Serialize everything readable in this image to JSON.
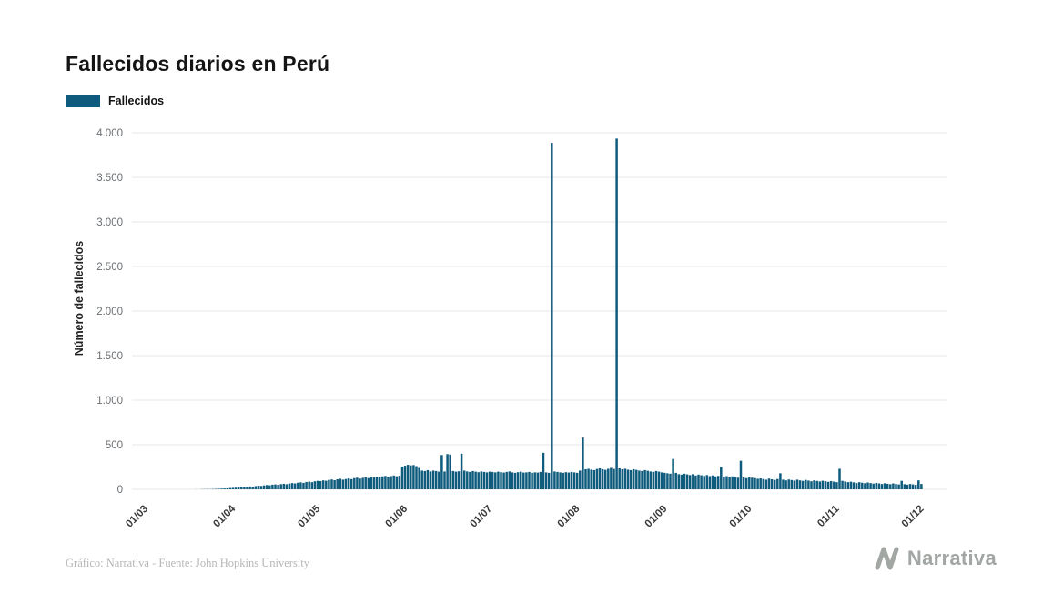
{
  "title": "Fallecidos diarios en Perú",
  "legend": {
    "label": "Fallecidos",
    "color": "#0f5b7d"
  },
  "footer": {
    "credit": "Gráfico: Narrativa - Fuente: John Hopkins University",
    "brand": "Narrativa"
  },
  "chart_data": {
    "type": "bar",
    "title": "Fallecidos diarios en Perú",
    "xlabel": "",
    "ylabel": "Número de fallecidos",
    "ylim": [
      0,
      4000
    ],
    "grid": true,
    "legend_position": "top-left",
    "bar_color": "#0f5b7d",
    "series_name": "Fallecidos",
    "start_date": "01/03",
    "frequency": "daily",
    "yticks": [
      {
        "value": 0,
        "label": "0"
      },
      {
        "value": 500,
        "label": "500"
      },
      {
        "value": 1000,
        "label": "1.000"
      },
      {
        "value": 1500,
        "label": "1.500"
      },
      {
        "value": 2000,
        "label": "2.000"
      },
      {
        "value": 2500,
        "label": "2.500"
      },
      {
        "value": 3000,
        "label": "3.000"
      },
      {
        "value": 3500,
        "label": "3.500"
      },
      {
        "value": 4000,
        "label": "4.000"
      }
    ],
    "xticks": [
      {
        "day": 0,
        "label": "01/03"
      },
      {
        "day": 31,
        "label": "01/04"
      },
      {
        "day": 61,
        "label": "01/05"
      },
      {
        "day": 92,
        "label": "01/06"
      },
      {
        "day": 122,
        "label": "01/07"
      },
      {
        "day": 153,
        "label": "01/08"
      },
      {
        "day": 184,
        "label": "01/09"
      },
      {
        "day": 214,
        "label": "01/10"
      },
      {
        "day": 245,
        "label": "01/11"
      },
      {
        "day": 275,
        "label": "01/12"
      }
    ],
    "values": [
      0,
      0,
      0,
      0,
      0,
      0,
      0,
      0,
      0,
      0,
      0,
      0,
      0,
      0,
      0,
      0,
      0,
      1,
      0,
      2,
      2,
      3,
      2,
      4,
      5,
      6,
      8,
      9,
      11,
      14,
      16,
      18,
      20,
      24,
      22,
      28,
      32,
      30,
      36,
      40,
      38,
      44,
      48,
      45,
      52,
      55,
      50,
      58,
      62,
      57,
      65,
      70,
      66,
      74,
      78,
      72,
      82,
      86,
      80,
      90,
      95,
      92,
      100,
      96,
      105,
      110,
      102,
      112,
      118,
      108,
      115,
      122,
      114,
      125,
      130,
      120,
      128,
      135,
      126,
      138,
      132,
      142,
      136,
      145,
      150,
      140,
      148,
      155,
      146,
      152,
      255,
      265,
      275,
      268,
      272,
      260,
      240,
      210,
      205,
      215,
      200,
      210,
      205,
      198,
      385,
      200,
      395,
      390,
      205,
      198,
      202,
      400,
      210,
      200,
      195,
      205,
      198,
      192,
      200,
      195,
      190,
      198,
      195,
      190,
      198,
      192,
      188,
      195,
      200,
      190,
      185,
      192,
      198,
      188,
      190,
      195,
      185,
      190,
      188,
      195,
      410,
      190,
      185,
      3887,
      200,
      195,
      190,
      185,
      192,
      188,
      195,
      190,
      185,
      210,
      580,
      225,
      230,
      220,
      215,
      228,
      235,
      225,
      218,
      230,
      240,
      228,
      3935,
      235,
      225,
      230,
      220,
      215,
      225,
      218,
      210,
      205,
      215,
      208,
      200,
      195,
      205,
      198,
      190,
      185,
      180,
      175,
      340,
      185,
      170,
      165,
      175,
      168,
      160,
      170,
      155,
      165,
      158,
      150,
      160,
      148,
      155,
      145,
      150,
      250,
      140,
      148,
      135,
      145,
      138,
      130,
      320,
      132,
      125,
      135,
      130,
      125,
      118,
      122,
      115,
      108,
      120,
      112,
      105,
      115,
      180,
      108,
      100,
      110,
      104,
      98,
      108,
      100,
      95,
      105,
      98,
      90,
      100,
      94,
      88,
      96,
      90,
      84,
      92,
      86,
      80,
      230,
      95,
      88,
      80,
      85,
      78,
      70,
      80,
      74,
      68,
      76,
      70,
      64,
      72,
      66,
      60,
      68,
      62,
      58,
      66,
      60,
      55,
      95,
      58,
      52,
      60,
      55,
      50,
      100,
      60
    ]
  }
}
